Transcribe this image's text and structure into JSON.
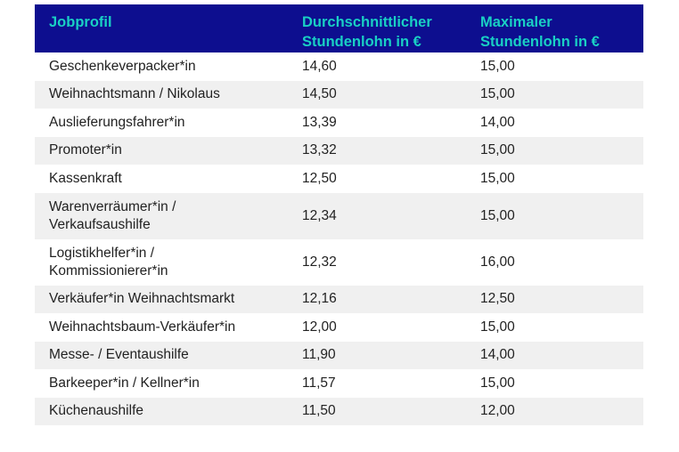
{
  "table": {
    "headers": {
      "job": "Jobprofil",
      "avg_line1": "Durchschnittlicher",
      "avg_line2": "Stundenlohn in €",
      "max_line1": "Maximaler",
      "max_line2": "Stundenlohn in €"
    },
    "rows": [
      {
        "job": "Geschenkeverpacker*in",
        "avg": "14,60",
        "max": "15,00"
      },
      {
        "job": "Weihnachtsmann / Nikolaus",
        "avg": "14,50",
        "max": "15,00"
      },
      {
        "job": "Auslieferungsfahrer*in",
        "avg": "13,39",
        "max": "14,00"
      },
      {
        "job": "Promoter*in",
        "avg": "13,32",
        "max": "15,00"
      },
      {
        "job": "Kassenkraft",
        "avg": "12,50",
        "max": "15,00"
      },
      {
        "job_line1": "Warenverräumer*in /",
        "job_line2": "Verkaufsaushilfe",
        "avg": "12,34",
        "max": "15,00"
      },
      {
        "job_line1": "Logistikhelfer*in /",
        "job_line2": "Kommissionierer*in",
        "avg": "12,32",
        "max": "16,00"
      },
      {
        "job": "Verkäufer*in Weihnachtsmarkt",
        "avg": "12,16",
        "max": "12,50"
      },
      {
        "job": "Weihnachtsbaum-Verkäufer*in",
        "avg": "12,00",
        "max": "15,00"
      },
      {
        "job": "Messe- / Eventaushilfe",
        "avg": "11,90",
        "max": "14,00"
      },
      {
        "job": "Barkeeper*in / Kellner*in",
        "avg": "11,57",
        "max": "15,00"
      },
      {
        "job": "Küchenaushilfe",
        "avg": "11,50",
        "max": "12,00"
      }
    ]
  },
  "colors": {
    "header_bg": "#0d0e8f",
    "header_text": "#19d0c4",
    "stripe": "#f0f0f0"
  }
}
